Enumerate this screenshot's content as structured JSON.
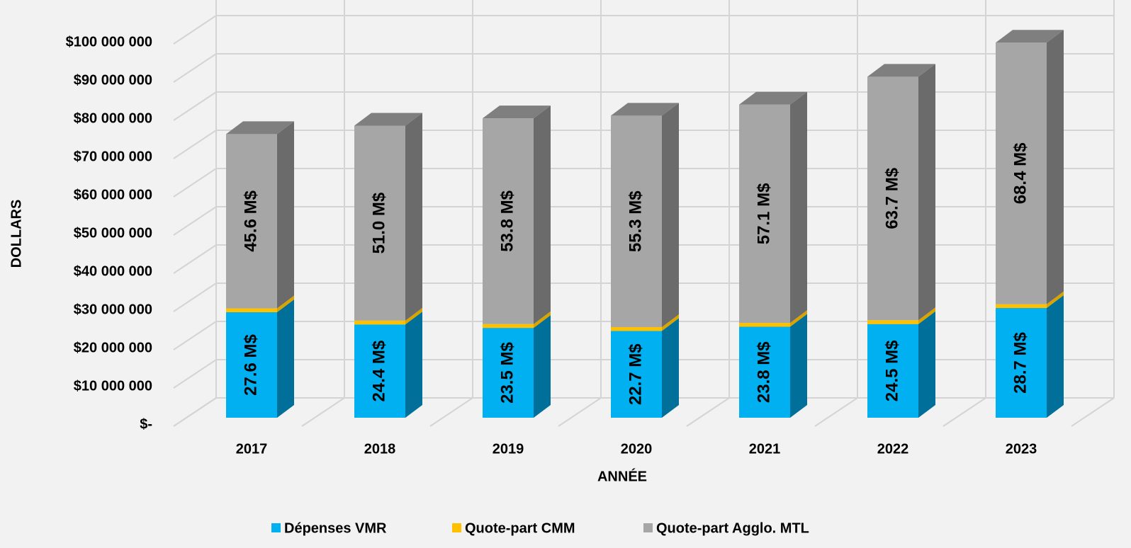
{
  "chart_data": {
    "type": "bar3d_stacked",
    "x_label": "ANNÉE",
    "y_label": "DOLLARS",
    "categories": [
      "2017",
      "2018",
      "2019",
      "2020",
      "2021",
      "2022",
      "2023"
    ],
    "series": [
      {
        "name": "Dépenses VMR",
        "color": "#00b0f0",
        "side_color": "#006f99",
        "values": [
          27600000,
          24400000,
          23500000,
          22700000,
          23800000,
          24500000,
          28700000
        ],
        "value_labels": [
          "27.6 M$",
          "24.4 M$",
          "23.5 M$",
          "22.7 M$",
          "23.8 M$",
          "24.5 M$",
          "28.7 M$"
        ]
      },
      {
        "name": "Quote-part CMM",
        "color": "#ffc000",
        "side_color": "#d9a300",
        "values": [
          1000000,
          1000000,
          1000000,
          1000000,
          1000000,
          1000000,
          1000000
        ]
      },
      {
        "name": "Quote-part Agglo. MTL",
        "color": "#a6a6a6",
        "side_color": "#6b6b6b",
        "top_color": "#7f7f7f",
        "values": [
          45600000,
          51000000,
          53800000,
          55300000,
          57100000,
          63700000,
          68400000
        ],
        "value_labels": [
          "45.6 M$",
          "51.0 M$",
          "53.8 M$",
          "55.3 M$",
          "57.1 M$",
          "63.7 M$",
          "68.4 M$"
        ]
      }
    ],
    "ylim": [
      0,
      100000000
    ],
    "yticks": [
      {
        "value": 0,
        "label": "$-"
      },
      {
        "value": 10000000,
        "label": "$10 000 000"
      },
      {
        "value": 20000000,
        "label": "$20 000 000"
      },
      {
        "value": 30000000,
        "label": "$30 000 000"
      },
      {
        "value": 40000000,
        "label": "$40 000 000"
      },
      {
        "value": 50000000,
        "label": "$50 000 000"
      },
      {
        "value": 60000000,
        "label": "$60 000 000"
      },
      {
        "value": 70000000,
        "label": "$70 000 000"
      },
      {
        "value": 80000000,
        "label": "$80 000 000"
      },
      {
        "value": 90000000,
        "label": "$90 000 000"
      },
      {
        "value": 100000000,
        "label": "$100 000 000"
      }
    ],
    "grid": true,
    "legend": "bottom"
  }
}
